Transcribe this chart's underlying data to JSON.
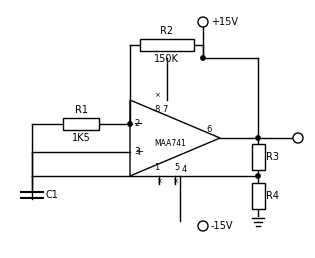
{
  "bg_color": "#ffffff",
  "line_color": "#000000",
  "labels": {
    "R1": "R1",
    "R1v": "1K5",
    "R2": "R2",
    "R2v": "150K",
    "R3": "R3",
    "R4": "R4",
    "C1": "C1",
    "opamp": "MAA741",
    "vplus": "+15V",
    "vminus": "-15V",
    "pin2": "2",
    "pin3": "3",
    "pin6": "6",
    "pin7": "7",
    "pin8": "8",
    "pin1": "1",
    "pin4": "4",
    "pin5": "5"
  },
  "figsize": [
    3.15,
    2.58
  ],
  "dpi": 100
}
